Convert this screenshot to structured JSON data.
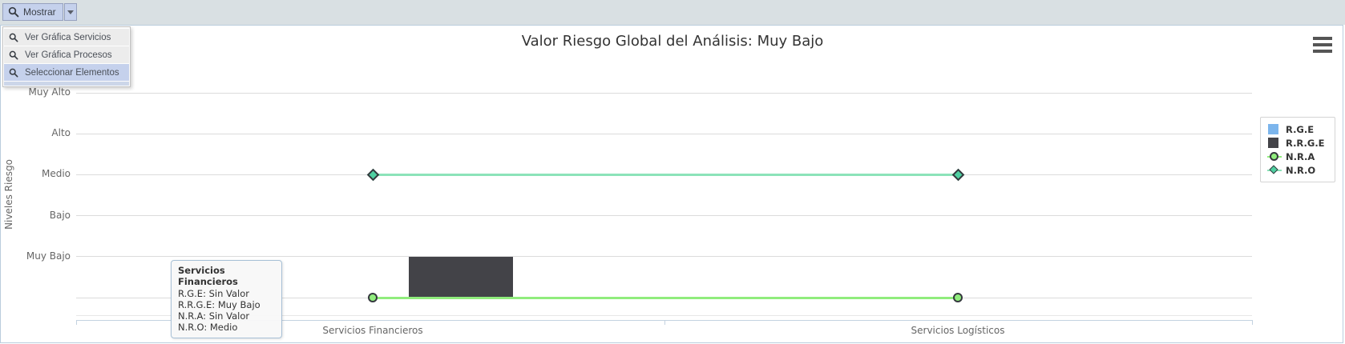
{
  "toolbar": {
    "button": {
      "label": "Mostrar"
    },
    "menu": {
      "items": [
        {
          "label": "Ver Gráfica Servicios",
          "selected": false
        },
        {
          "label": "Ver Gráfica Procesos",
          "selected": false
        },
        {
          "label": "Seleccionar Elementos",
          "selected": true
        }
      ]
    }
  },
  "chart": {
    "title": "Valor Riesgo Global del Análisis: Muy Bajo",
    "y_axis_title": "Niveles Riesgo"
  },
  "chart_data": {
    "type": "mixed",
    "title": "Valor Riesgo Global del Análisis: Muy Bajo",
    "categories": [
      "Servicios Financieros",
      "Servicios Logísticos"
    ],
    "ylabel": "Niveles Riesgo",
    "y_ticks": [
      "Muy Alto",
      "Alto",
      "Medio",
      "Bajo",
      "Muy Bajo"
    ],
    "value_scale": {
      "0": "Sin Valor",
      "1": "Muy Bajo",
      "2": "Bajo",
      "3": "Medio",
      "4": "Alto",
      "5": "Muy Alto"
    },
    "ylim": [
      0,
      5.5
    ],
    "grid": true,
    "legend_position": "right",
    "series": [
      {
        "name": "R.G.E",
        "type": "column",
        "color": "#7cb5ec",
        "values": [
          0,
          0
        ],
        "labels": [
          "Sin Valor",
          "Sin Valor"
        ]
      },
      {
        "name": "R.R.G.E",
        "type": "column",
        "color": "#434348",
        "values": [
          1,
          0
        ],
        "labels": [
          "Muy Bajo",
          "Sin Valor"
        ]
      },
      {
        "name": "N.R.A",
        "type": "line",
        "marker": "circle",
        "color": "#90ed7d",
        "marker_fill": "#90ed7d",
        "marker_stroke": "#35393e",
        "values": [
          0,
          0
        ],
        "labels": [
          "Sin Valor",
          "Sin Valor"
        ]
      },
      {
        "name": "N.R.O",
        "type": "line",
        "marker": "diamond",
        "color": "#8ce3b9",
        "marker_fill": "#4fd0a1",
        "marker_stroke": "#35393e",
        "values": [
          3,
          3
        ],
        "labels": [
          "Medio",
          "Medio"
        ]
      }
    ]
  },
  "legend": {
    "items": [
      {
        "label": "R.G.E",
        "marker": "square",
        "fill": "#7cb5ec",
        "line_color": "#7cb5ec"
      },
      {
        "label": "R.R.G.E",
        "marker": "square",
        "fill": "#434348",
        "line_color": "#434348"
      },
      {
        "label": "N.R.A",
        "marker": "circle",
        "fill": "#90ed7d",
        "line_color": "#90ed7d"
      },
      {
        "label": "N.R.O",
        "marker": "diamond",
        "fill": "#4fd0a1",
        "line_color": "#8ce3b9"
      }
    ]
  },
  "tooltip": {
    "title": "Servicios Financieros",
    "lines": [
      "R.G.E: Sin Valor",
      "R.R.G.E: Muy Bajo",
      "N.R.A: Sin Valor",
      "N.R.O: Medio"
    ]
  },
  "colors": {
    "toolbar_bg": "#d9e0e3",
    "selection_bg": "#c5d1ec",
    "menu_item_bg": "#ececec",
    "panel_border": "#bacddd",
    "grid": "#dcdcdc",
    "axis_line": "#c3d2e0",
    "title_text": "#333333",
    "axis_text": "#666666",
    "tooltip_border": "#a7c0d6",
    "legend_border": "#d4d4d4"
  }
}
